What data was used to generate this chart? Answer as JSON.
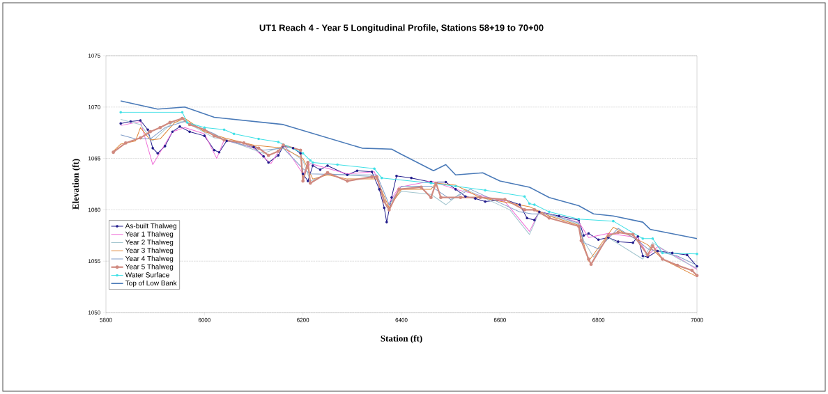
{
  "chart_data": {
    "type": "line",
    "title": "UT1 Reach 4 - Year 5 Longitudinal Profile, Stations 58+19 to 70+00",
    "xlabel": "Station (ft)",
    "ylabel": "Elevation (ft)",
    "xlim": [
      5800,
      7000
    ],
    "xticks": [
      5800,
      6000,
      6200,
      6400,
      6600,
      6800,
      7000
    ],
    "ylim": [
      1050,
      1075
    ],
    "yticks": [
      1050,
      1055,
      1060,
      1065,
      1070,
      1075
    ],
    "grid": "y",
    "legend": "bottom left",
    "series": [
      {
        "name": "As-built Thalweg",
        "color": "#231d8c",
        "marker": "circle",
        "x": [
          5830,
          5850,
          5870,
          5885,
          5895,
          5905,
          5920,
          5935,
          5950,
          5970,
          6000,
          6020,
          6030,
          6045,
          6080,
          6100,
          6120,
          6130,
          6150,
          6160,
          6180,
          6195,
          6200,
          6210,
          6220,
          6235,
          6250,
          6290,
          6310,
          6340,
          6355,
          6365,
          6370,
          6380,
          6390,
          6420,
          6460,
          6490,
          6510,
          6530,
          6550,
          6570,
          6610,
          6640,
          6655,
          6670,
          6680,
          6720,
          6760,
          6770,
          6780,
          6800,
          6820,
          6840,
          6870,
          6880,
          6890,
          6900,
          6920,
          6950,
          6980,
          7000
        ],
        "values": [
          1068.4,
          1068.6,
          1068.7,
          1067.8,
          1066.0,
          1065.5,
          1066.2,
          1067.6,
          1068.1,
          1067.6,
          1067.2,
          1065.8,
          1065.6,
          1066.7,
          1066.5,
          1066.1,
          1065.2,
          1064.6,
          1065.3,
          1066.2,
          1066.0,
          1065.5,
          1063.5,
          1062.8,
          1064.3,
          1063.9,
          1064.3,
          1063.4,
          1063.8,
          1063.7,
          1062.0,
          1060.2,
          1058.8,
          1061.2,
          1063.3,
          1063.1,
          1062.7,
          1062.7,
          1062.0,
          1061.3,
          1061.1,
          1060.8,
          1061.0,
          1060.5,
          1059.2,
          1059.0,
          1059.8,
          1059.4,
          1059.0,
          1057.5,
          1057.7,
          1057.1,
          1057.3,
          1056.9,
          1056.8,
          1057.4,
          1055.5,
          1055.4,
          1056.0,
          1055.8,
          1055.6,
          1054.5
        ]
      },
      {
        "name": "Year 1 Thalweg",
        "color": "#f070d8",
        "x": [
          5830,
          5870,
          5895,
          5935,
          5960,
          6000,
          6025,
          6040,
          6100,
          6135,
          6160,
          6200,
          6215,
          6290,
          6345,
          6370,
          6395,
          6460,
          6510,
          6610,
          6660,
          6680,
          6760,
          6780,
          6820,
          6880,
          6900,
          6920,
          6960,
          7000
        ],
        "values": [
          1068.2,
          1068.6,
          1064.4,
          1067.6,
          1068.0,
          1067.4,
          1065.0,
          1066.8,
          1066.0,
          1064.5,
          1066.4,
          1063.5,
          1064.5,
          1063.5,
          1063.7,
          1060.3,
          1062.2,
          1062.8,
          1062.0,
          1060.8,
          1057.9,
          1059.8,
          1058.8,
          1057.3,
          1057.7,
          1057.3,
          1055.6,
          1056.4,
          1055.4,
          1054.2
        ]
      },
      {
        "name": "Year 2 Thalweg",
        "color": "#a3c6cf",
        "x": [
          5830,
          5870,
          5895,
          5935,
          5960,
          6020,
          6040,
          6120,
          6160,
          6200,
          6215,
          6250,
          6350,
          6370,
          6400,
          6460,
          6490,
          6530,
          6620,
          6660,
          6680,
          6760,
          6770,
          6790,
          6820,
          6890,
          6910,
          6960,
          7000
        ],
        "values": [
          1068.8,
          1068.3,
          1066.7,
          1068.5,
          1068.6,
          1067.0,
          1066.9,
          1065.5,
          1066.2,
          1064.8,
          1062.8,
          1063.5,
          1063.2,
          1060.3,
          1061.8,
          1061.5,
          1060.5,
          1062.0,
          1060.0,
          1057.6,
          1059.8,
          1058.6,
          1057.0,
          1055.4,
          1057.3,
          1055.2,
          1056.8,
          1055.3,
          1054.3
        ]
      },
      {
        "name": "Year 3 Thalweg",
        "color": "#e0883a",
        "x": [
          5815,
          5830,
          5860,
          5870,
          5890,
          5910,
          5940,
          5960,
          6000,
          6040,
          6100,
          6160,
          6200,
          6220,
          6250,
          6290,
          6350,
          6375,
          6400,
          6460,
          6470,
          6510,
          6560,
          6660,
          6700,
          6760,
          6780,
          6830,
          6900,
          6930,
          7000
        ],
        "values": [
          1065.7,
          1066.4,
          1066.7,
          1068.0,
          1066.8,
          1066.9,
          1068.5,
          1068.9,
          1067.6,
          1067.0,
          1066.3,
          1066.0,
          1065.0,
          1063.0,
          1063.4,
          1063.0,
          1063.0,
          1060.2,
          1062.0,
          1062.0,
          1062.6,
          1062.4,
          1061.2,
          1060.3,
          1059.4,
          1058.5,
          1055.0,
          1058.3,
          1056.6,
          1055.2,
          1053.5
        ]
      },
      {
        "name": "Year 4 Thalweg",
        "color": "#7f9cc8",
        "x": [
          5830,
          5860,
          5890,
          5920,
          5960,
          6020,
          6040,
          6120,
          6160,
          6200,
          6215,
          6300,
          6350,
          6375,
          6400,
          6460,
          6500,
          6540,
          6640,
          6665,
          6700,
          6760,
          6770,
          6800,
          6840,
          6880,
          6900,
          6960,
          7000
        ],
        "values": [
          1067.3,
          1066.9,
          1066.9,
          1068.0,
          1068.6,
          1067.4,
          1066.8,
          1065.8,
          1066.0,
          1064.0,
          1063.5,
          1063.4,
          1063.4,
          1060.5,
          1062.3,
          1062.3,
          1061.0,
          1062.0,
          1059.8,
          1059.6,
          1059.6,
          1058.7,
          1056.8,
          1056.2,
          1058.2,
          1057.0,
          1056.2,
          1055.5,
          1054.6
        ]
      },
      {
        "name": "Year 5 Thalweg",
        "color": "#d08a80",
        "marker": "circle",
        "x": [
          5815,
          5840,
          5870,
          5890,
          5910,
          5930,
          5955,
          5970,
          6000,
          6020,
          6040,
          6080,
          6110,
          6130,
          6150,
          6160,
          6195,
          6200,
          6210,
          6215,
          6250,
          6290,
          6340,
          6350,
          6365,
          6375,
          6395,
          6440,
          6460,
          6470,
          6480,
          6520,
          6560,
          6610,
          6650,
          6670,
          6700,
          6760,
          6765,
          6780,
          6785,
          6820,
          6840,
          6870,
          6900,
          6910,
          6930,
          6960,
          6990,
          7000
        ],
        "values": [
          1065.6,
          1066.5,
          1067.0,
          1067.6,
          1068.0,
          1068.5,
          1068.9,
          1068.3,
          1067.8,
          1067.2,
          1066.8,
          1066.5,
          1066.0,
          1065.3,
          1065.7,
          1066.3,
          1065.8,
          1062.8,
          1064.6,
          1062.6,
          1063.6,
          1062.8,
          1063.2,
          1063.2,
          1060.8,
          1060.0,
          1062.0,
          1062.2,
          1061.2,
          1062.6,
          1061.2,
          1061.2,
          1061.2,
          1061.0,
          1060.0,
          1060.0,
          1059.2,
          1058.4,
          1057.0,
          1055.2,
          1054.7,
          1057.5,
          1057.8,
          1057.6,
          1055.6,
          1056.5,
          1055.2,
          1054.6,
          1054.1,
          1053.6
        ]
      },
      {
        "name": "Water Surface",
        "color": "#3fe0e6",
        "marker": "circle",
        "x": [
          5830,
          5955,
          5965,
          6000,
          6040,
          6060,
          6110,
          6150,
          6200,
          6215,
          6220,
          6270,
          6345,
          6360,
          6460,
          6510,
          6570,
          6650,
          6660,
          6670,
          6700,
          6760,
          6830,
          6890,
          6910,
          6930,
          7000
        ],
        "values": [
          1069.5,
          1069.5,
          1068.5,
          1068.0,
          1067.8,
          1067.4,
          1066.9,
          1066.6,
          1065.5,
          1064.8,
          1064.6,
          1064.4,
          1064.0,
          1063.1,
          1062.6,
          1062.3,
          1061.9,
          1061.3,
          1060.6,
          1060.5,
          1059.8,
          1059.1,
          1058.9,
          1057.2,
          1057.2,
          1055.8,
          1055.7
        ]
      },
      {
        "name": "Top of Low Bank",
        "color": "#4a7ab8",
        "x": [
          5830,
          5905,
          5960,
          6020,
          6160,
          6320,
          6380,
          6400,
          6465,
          6490,
          6510,
          6565,
          6600,
          6660,
          6700,
          6760,
          6790,
          6830,
          6890,
          6905,
          7000
        ],
        "values": [
          1070.6,
          1069.8,
          1070.0,
          1069.0,
          1068.3,
          1066.0,
          1065.9,
          1065.4,
          1063.8,
          1064.4,
          1063.4,
          1063.6,
          1062.8,
          1062.2,
          1061.2,
          1060.4,
          1059.6,
          1059.4,
          1058.8,
          1058.1,
          1057.2
        ]
      }
    ]
  }
}
